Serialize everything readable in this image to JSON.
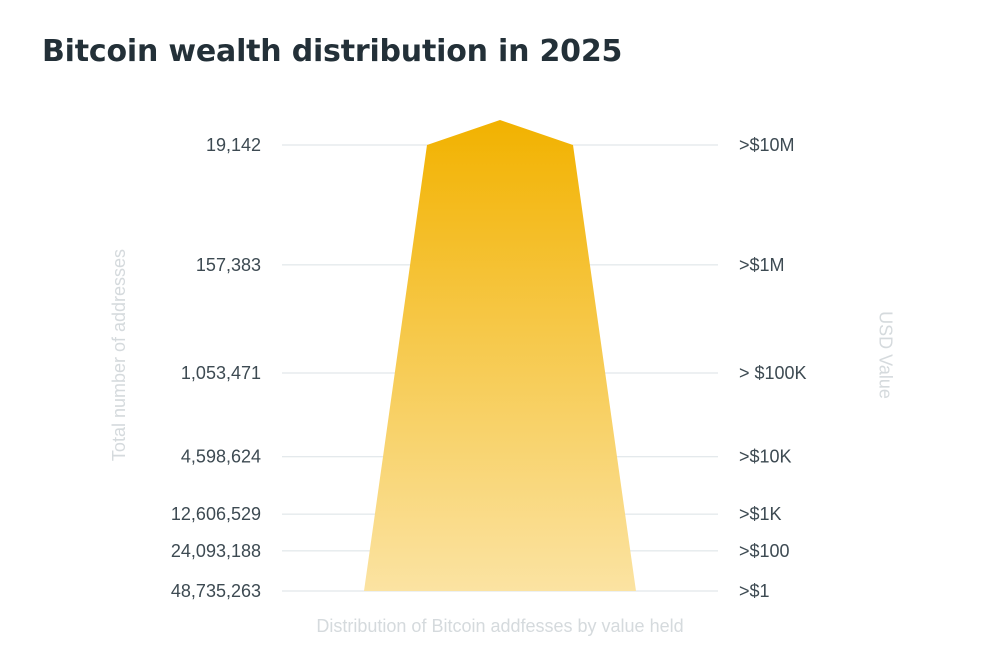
{
  "chart_data": {
    "type": "area",
    "title": "Bitcoin wealth distribution in 2025",
    "xlabel": "Distribution of Bitcoin addfesses by value held",
    "ylabel_left": "Total number of addresses",
    "ylabel_right": "USD Value",
    "categories": [
      ">$10M",
      ">$1M",
      "> $100K",
      ">$10K",
      ">$1K",
      ">$100",
      ">$1"
    ],
    "series": [
      {
        "name": "Total number of addresses",
        "values": [
          19142,
          157383,
          1053471,
          4598624,
          12606529,
          24093188,
          48735263
        ]
      }
    ],
    "address_labels": [
      "19,142",
      "157,383",
      "1,053,471",
      "4,598,624",
      "12,606,529",
      "24,093,188",
      "48,735,263"
    ],
    "grid": true,
    "colors": {
      "top": "#f2b200",
      "bottom": "#fbe3a2",
      "title": "#233038",
      "tick_text": "#3d4a52",
      "axis_label": "#d5dadd",
      "grid": "#dbe2e5"
    }
  }
}
